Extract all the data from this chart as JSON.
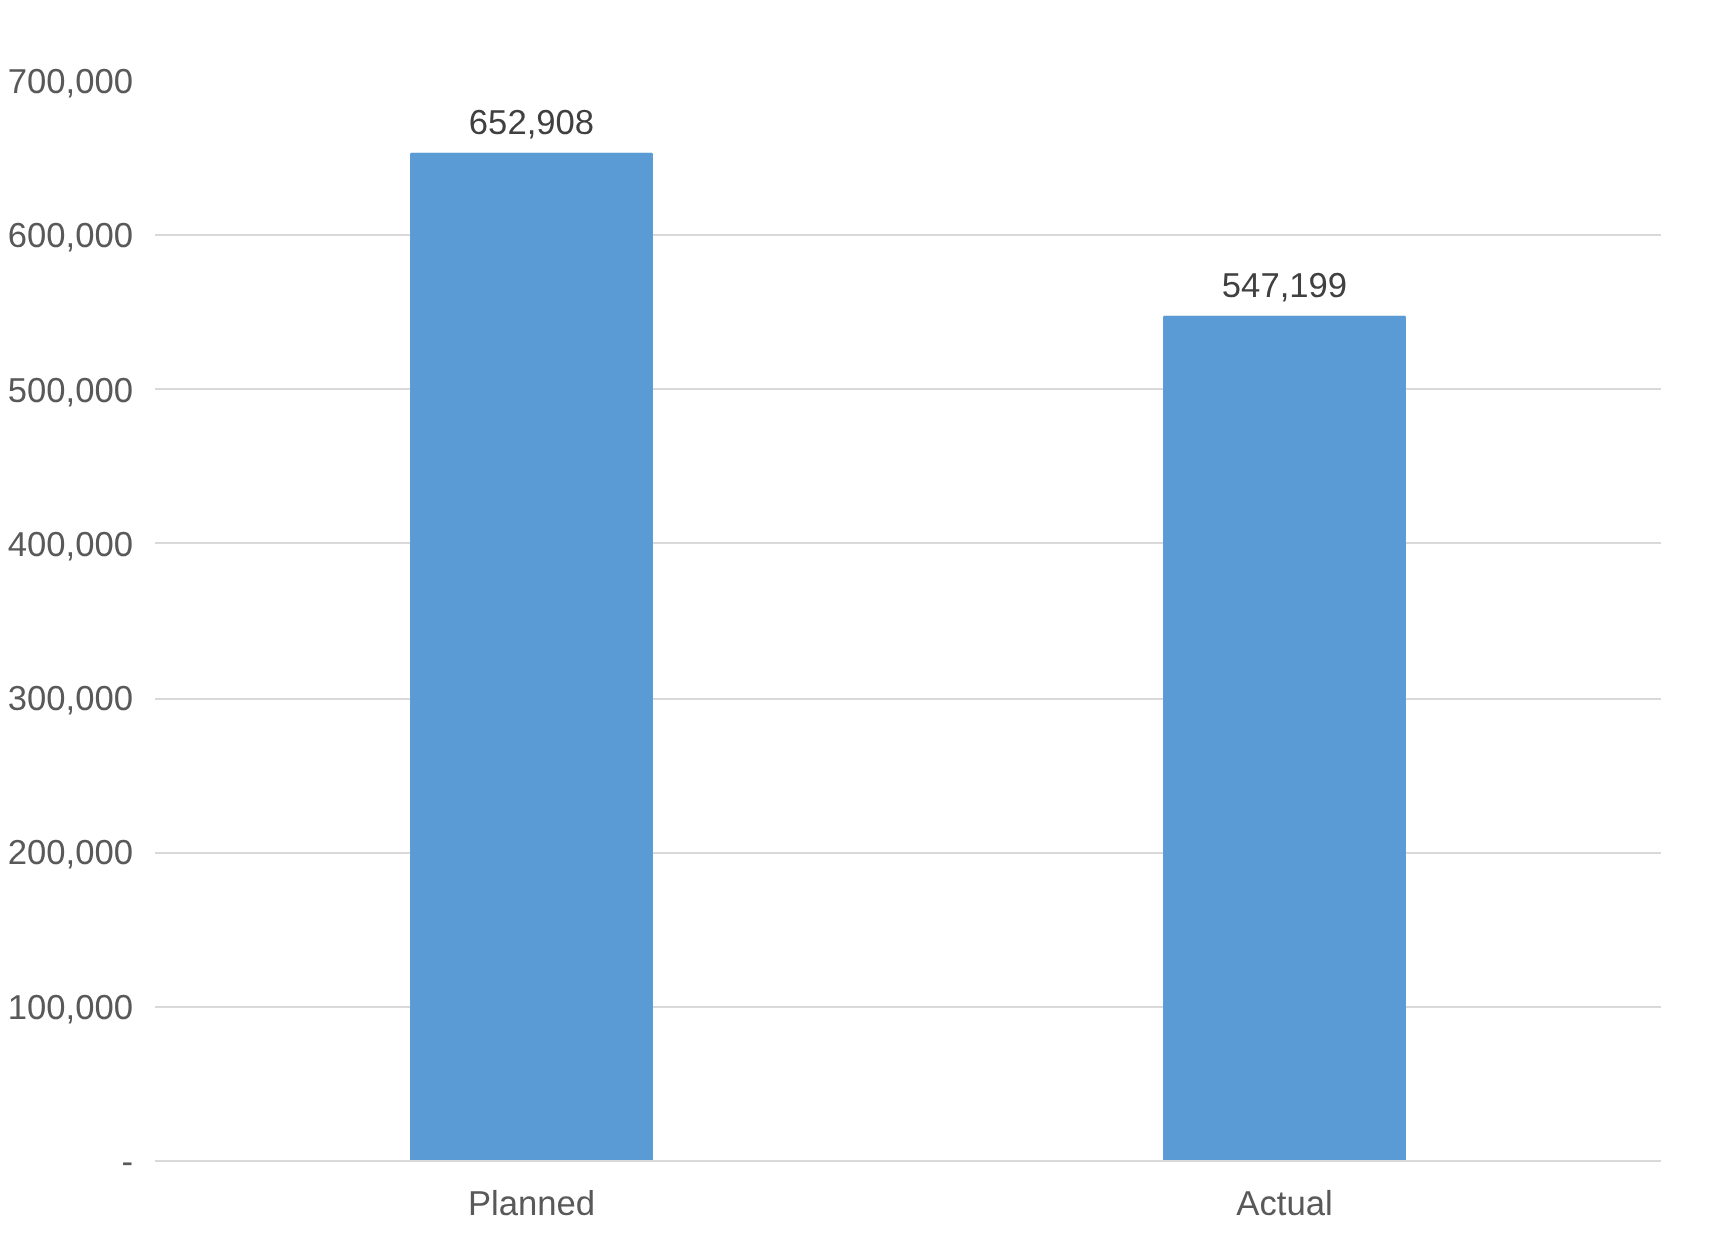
{
  "chart_data": {
    "type": "bar",
    "categories": [
      "Planned",
      "Actual"
    ],
    "values": [
      652908,
      547199
    ],
    "colors": [
      "#5b9bd5",
      "#5b9bd5"
    ],
    "value_labels": [
      "652,908",
      "547,199"
    ],
    "ylim": [
      0,
      700000
    ],
    "yticks": [
      {
        "value": 0,
        "label": "-"
      },
      {
        "value": 100000,
        "label": "100,000"
      },
      {
        "value": 200000,
        "label": "200,000"
      },
      {
        "value": 300000,
        "label": "300,000"
      },
      {
        "value": 400000,
        "label": "400,000"
      },
      {
        "value": 500000,
        "label": "500,000"
      },
      {
        "value": 600000,
        "label": "600,000"
      },
      {
        "value": 700000,
        "label": "700,000"
      }
    ],
    "grid": "y"
  }
}
